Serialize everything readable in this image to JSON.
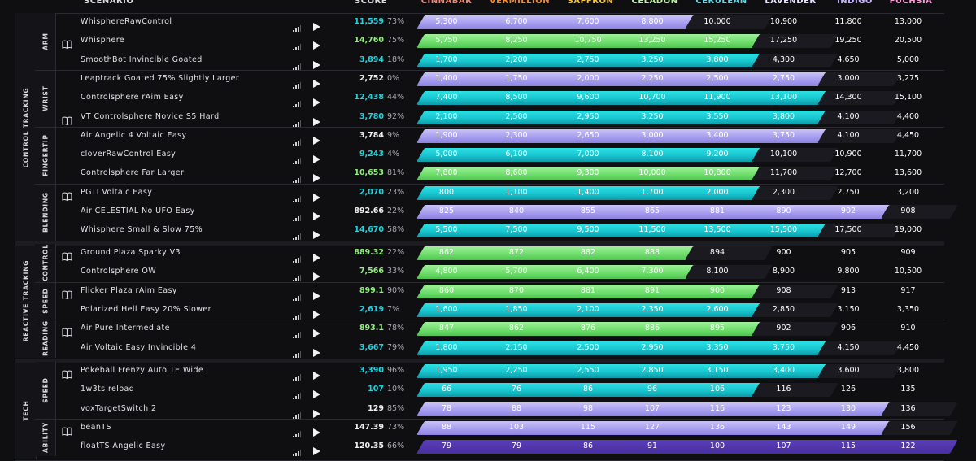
{
  "header": {
    "scenario": "SCENARIO",
    "score": "SCORE",
    "ranks": [
      {
        "label": "CINNABAR",
        "color": "#f08a78"
      },
      {
        "label": "VERMILLION",
        "color": "#f58a2e"
      },
      {
        "label": "SAFFRON",
        "color": "#f5c33a"
      },
      {
        "label": "CELADON",
        "color": "#bff0a8"
      },
      {
        "label": "CERULEAN",
        "color": "#5fd9e6"
      },
      {
        "label": "LAVENDER",
        "color": "#e8e4ff"
      },
      {
        "label": "INDIGO",
        "color": "#c8b6ff"
      },
      {
        "label": "FUCHSIA",
        "color": "#ff9ad8"
      }
    ]
  },
  "colors": {
    "teal": "#18c5cf",
    "purple": "#a79ef0",
    "green": "#70df6d",
    "score_teal": "#1fd3dc",
    "score_green": "#8ff07a",
    "score_white": "#f0f0f0"
  },
  "icons": {
    "guide": "book-icon",
    "difficulty": "signal-bars-icon",
    "play": "play-icon"
  },
  "categories": [
    {
      "label": "CONTROL TRACKING"
    },
    {
      "label": "REACTIVE TRACKING"
    },
    {
      "label": "TECH"
    }
  ],
  "subcategories": [
    {
      "label": "ARM"
    },
    {
      "label": "WRIST"
    },
    {
      "label": "FINGERTIP"
    },
    {
      "label": "BLENDING"
    },
    {
      "label": "CONTROL"
    },
    {
      "label": "SPEED"
    },
    {
      "label": "READING"
    },
    {
      "label": "SPEED"
    },
    {
      "label": "ABILITY"
    }
  ],
  "rows": [
    {
      "name": "WhisphereRawControl",
      "score": "11,559",
      "pct": "73%",
      "book": false,
      "score_color": "teal",
      "cleared": 4,
      "bar_color": "purple",
      "values": [
        "5,300",
        "6,700",
        "7,600",
        "8,800",
        "10,000",
        "10,900",
        "11,800",
        "13,000"
      ]
    },
    {
      "name": "Whisphere",
      "score": "14,760",
      "pct": "75%",
      "book": true,
      "score_color": "green",
      "cleared": 5,
      "bar_color": "green",
      "values": [
        "5,750",
        "8,250",
        "10,750",
        "13,250",
        "15,250",
        "17,250",
        "19,250",
        "20,500"
      ]
    },
    {
      "name": "SmoothBot Invincible Goated",
      "score": "3,894",
      "pct": "18%",
      "book": false,
      "score_color": "teal",
      "cleared": 5,
      "bar_color": "teal",
      "values": [
        "1,700",
        "2,200",
        "2,750",
        "3,250",
        "3,800",
        "4,300",
        "4,650",
        "5,000"
      ]
    },
    {
      "name": "Leaptrack Goated 75% Slightly Larger",
      "score": "2,752",
      "pct": "0%",
      "book": false,
      "score_color": "white",
      "cleared": 6,
      "bar_color": "purple",
      "values": [
        "1,400",
        "1,750",
        "2,000",
        "2,250",
        "2,500",
        "2,750",
        "3,000",
        "3,275"
      ]
    },
    {
      "name": "Controlsphere rAim Easy",
      "score": "12,438",
      "pct": "44%",
      "book": false,
      "score_color": "teal",
      "cleared": 6,
      "bar_color": "teal",
      "values": [
        "7,400",
        "8,500",
        "9,600",
        "10,700",
        "11,900",
        "13,100",
        "14,300",
        "15,100"
      ]
    },
    {
      "name": "VT Controlsphere Novice S5 Hard",
      "score": "3,780",
      "pct": "92%",
      "book": true,
      "score_color": "teal",
      "cleared": 6,
      "bar_color": "teal",
      "values": [
        "2,100",
        "2,500",
        "2,950",
        "3,250",
        "3,550",
        "3,800",
        "4,100",
        "4,400"
      ]
    },
    {
      "name": "Air Angelic 4 Voltaic Easy",
      "score": "3,784",
      "pct": "9%",
      "book": false,
      "score_color": "white",
      "cleared": 6,
      "bar_color": "purple",
      "values": [
        "1,900",
        "2,300",
        "2,650",
        "3,000",
        "3,400",
        "3,750",
        "4,100",
        "4,450"
      ]
    },
    {
      "name": "cloverRawControl Easy",
      "score": "9,243",
      "pct": "4%",
      "book": false,
      "score_color": "teal",
      "cleared": 5,
      "bar_color": "teal",
      "values": [
        "5,000",
        "6,100",
        "7,000",
        "8,100",
        "9,200",
        "10,100",
        "10,900",
        "11,700"
      ]
    },
    {
      "name": "Controlsphere Far Larger",
      "score": "10,653",
      "pct": "81%",
      "book": false,
      "score_color": "green",
      "cleared": 5,
      "bar_color": "green",
      "values": [
        "7,800",
        "8,600",
        "9,300",
        "10,000",
        "10,800",
        "11,700",
        "12,700",
        "13,600"
      ]
    },
    {
      "name": "PGTI Voltaic Easy",
      "score": "2,070",
      "pct": "23%",
      "book": true,
      "score_color": "teal",
      "cleared": 5,
      "bar_color": "teal",
      "values": [
        "800",
        "1,100",
        "1,400",
        "1,700",
        "2,000",
        "2,300",
        "2,750",
        "3,200"
      ]
    },
    {
      "name": "Air CELESTIAL No UFO Easy",
      "score": "892.66",
      "pct": "22%",
      "book": false,
      "score_color": "white",
      "cleared": 7,
      "bar_color": "purple",
      "values": [
        "825",
        "840",
        "855",
        "865",
        "881",
        "890",
        "902",
        "908"
      ]
    },
    {
      "name": "Whisphere Small & Slow 75%",
      "score": "14,670",
      "pct": "58%",
      "book": false,
      "score_color": "teal",
      "cleared": 6,
      "bar_color": "teal",
      "values": [
        "5,500",
        "7,500",
        "9,500",
        "11,500",
        "13,500",
        "15,500",
        "17,500",
        "19,000"
      ]
    },
    {
      "name": "Ground Plaza Sparky V3",
      "score": "889.32",
      "pct": "22%",
      "book": true,
      "score_color": "green",
      "cleared": 4,
      "bar_color": "green",
      "values": [
        "862",
        "872",
        "882",
        "888",
        "894",
        "900",
        "905",
        "909"
      ]
    },
    {
      "name": "Controlsphere OW",
      "score": "7,566",
      "pct": "33%",
      "book": false,
      "score_color": "green",
      "cleared": 4,
      "bar_color": "green",
      "values": [
        "4,800",
        "5,700",
        "6,400",
        "7,300",
        "8,100",
        "8,900",
        "9,800",
        "10,500"
      ]
    },
    {
      "name": "Flicker Plaza rAim Easy",
      "score": "899.1",
      "pct": "90%",
      "book": true,
      "score_color": "green",
      "cleared": 5,
      "bar_color": "green",
      "values": [
        "860",
        "870",
        "881",
        "891",
        "900",
        "908",
        "913",
        "917"
      ]
    },
    {
      "name": "Polarized Hell Easy 20% Slower",
      "score": "2,619",
      "pct": "7%",
      "book": false,
      "score_color": "teal",
      "cleared": 5,
      "bar_color": "teal",
      "values": [
        "1,600",
        "1,850",
        "2,100",
        "2,350",
        "2,600",
        "2,850",
        "3,150",
        "3,350"
      ]
    },
    {
      "name": "Air Pure Intermediate",
      "score": "893.1",
      "pct": "78%",
      "book": true,
      "score_color": "green",
      "cleared": 5,
      "bar_color": "green",
      "values": [
        "847",
        "862",
        "876",
        "886",
        "895",
        "902",
        "906",
        "910"
      ]
    },
    {
      "name": "Air Voltaic Easy Invincible 4",
      "score": "3,667",
      "pct": "79%",
      "book": false,
      "score_color": "teal",
      "cleared": 6,
      "bar_color": "teal",
      "values": [
        "1,800",
        "2,150",
        "2,500",
        "2,950",
        "3,350",
        "3,750",
        "4,150",
        "4,450"
      ]
    },
    {
      "name": "Pokeball Frenzy Auto TE Wide",
      "score": "3,390",
      "pct": "96%",
      "book": true,
      "score_color": "teal",
      "cleared": 6,
      "bar_color": "teal",
      "values": [
        "1,950",
        "2,250",
        "2,550",
        "2,850",
        "3,150",
        "3,400",
        "3,600",
        "3,800"
      ]
    },
    {
      "name": "1w3ts reload",
      "score": "107",
      "pct": "10%",
      "book": false,
      "score_color": "teal",
      "cleared": 5,
      "bar_color": "teal",
      "values": [
        "66",
        "76",
        "86",
        "96",
        "106",
        "116",
        "126",
        "135"
      ]
    },
    {
      "name": "voxTargetSwitch 2",
      "score": "129",
      "pct": "85%",
      "book": false,
      "score_color": "white",
      "cleared": 7,
      "bar_color": "purple",
      "values": [
        "78",
        "88",
        "98",
        "107",
        "116",
        "123",
        "130",
        "136"
      ]
    },
    {
      "name": "beanTS",
      "score": "147.39",
      "pct": "73%",
      "book": true,
      "score_color": "white",
      "cleared": 7,
      "bar_color": "purple",
      "values": [
        "88",
        "103",
        "115",
        "127",
        "136",
        "143",
        "149",
        "156"
      ]
    },
    {
      "name": "floatTS Angelic Easy",
      "score": "120.35",
      "pct": "66%",
      "book": false,
      "score_color": "white",
      "cleared": 8,
      "bar_color": "dark",
      "values": [
        "79",
        "79",
        "86",
        "91",
        "100",
        "107",
        "115",
        "122"
      ]
    }
  ]
}
